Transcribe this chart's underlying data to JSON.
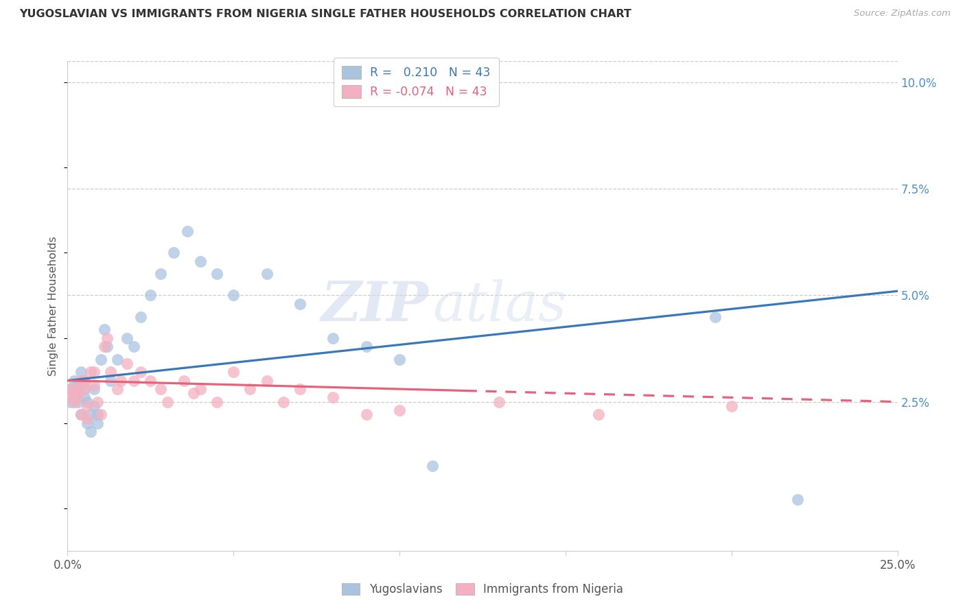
{
  "title": "YUGOSLAVIAN VS IMMIGRANTS FROM NIGERIA SINGLE FATHER HOUSEHOLDS CORRELATION CHART",
  "source": "Source: ZipAtlas.com",
  "ylabel": "Single Father Households",
  "yticks_labels": [
    "2.5%",
    "5.0%",
    "7.5%",
    "10.0%"
  ],
  "ytick_vals": [
    0.025,
    0.05,
    0.075,
    0.1
  ],
  "xmin": 0.0,
  "xmax": 0.25,
  "ymin": -0.01,
  "ymax": 0.105,
  "legend_blue_r_val": "0.210",
  "legend_blue_n": "N = 43",
  "legend_pink_r_val": "-0.074",
  "legend_pink_n": "N = 43",
  "blue_scatter_color": "#aac4e0",
  "pink_scatter_color": "#f4b0c0",
  "blue_line_color": "#3878b8",
  "pink_line_color": "#e8607a",
  "watermark_zip": "ZIP",
  "watermark_atlas": "atlas",
  "blue_x": [
    0.001,
    0.001,
    0.002,
    0.002,
    0.003,
    0.003,
    0.003,
    0.004,
    0.004,
    0.005,
    0.005,
    0.005,
    0.006,
    0.006,
    0.007,
    0.007,
    0.008,
    0.008,
    0.009,
    0.009,
    0.01,
    0.011,
    0.012,
    0.013,
    0.015,
    0.018,
    0.02,
    0.022,
    0.025,
    0.028,
    0.032,
    0.036,
    0.04,
    0.045,
    0.05,
    0.06,
    0.07,
    0.08,
    0.09,
    0.1,
    0.11,
    0.195,
    0.22
  ],
  "blue_y": [
    0.025,
    0.028,
    0.026,
    0.03,
    0.025,
    0.027,
    0.029,
    0.022,
    0.032,
    0.026,
    0.028,
    0.03,
    0.02,
    0.025,
    0.018,
    0.022,
    0.024,
    0.028,
    0.02,
    0.022,
    0.035,
    0.042,
    0.038,
    0.03,
    0.035,
    0.04,
    0.038,
    0.045,
    0.05,
    0.055,
    0.06,
    0.065,
    0.058,
    0.055,
    0.05,
    0.055,
    0.048,
    0.04,
    0.038,
    0.035,
    0.01,
    0.045,
    0.002
  ],
  "pink_x": [
    0.001,
    0.001,
    0.002,
    0.002,
    0.003,
    0.003,
    0.004,
    0.004,
    0.005,
    0.005,
    0.006,
    0.006,
    0.007,
    0.008,
    0.008,
    0.009,
    0.01,
    0.011,
    0.012,
    0.013,
    0.015,
    0.016,
    0.018,
    0.02,
    0.022,
    0.025,
    0.028,
    0.03,
    0.035,
    0.038,
    0.04,
    0.045,
    0.05,
    0.055,
    0.06,
    0.065,
    0.07,
    0.08,
    0.09,
    0.1,
    0.13,
    0.16,
    0.2
  ],
  "pink_y": [
    0.026,
    0.028,
    0.025,
    0.027,
    0.026,
    0.028,
    0.03,
    0.022,
    0.028,
    0.03,
    0.021,
    0.024,
    0.032,
    0.029,
    0.032,
    0.025,
    0.022,
    0.038,
    0.04,
    0.032,
    0.028,
    0.03,
    0.034,
    0.03,
    0.032,
    0.03,
    0.028,
    0.025,
    0.03,
    0.027,
    0.028,
    0.025,
    0.032,
    0.028,
    0.03,
    0.025,
    0.028,
    0.026,
    0.022,
    0.023,
    0.025,
    0.022,
    0.024
  ],
  "blue_line_x0": 0.0,
  "blue_line_y0": 0.03,
  "blue_line_x1": 0.25,
  "blue_line_y1": 0.051,
  "pink_line_x0": 0.0,
  "pink_line_y0": 0.03,
  "pink_line_x1": 0.25,
  "pink_line_y1": 0.025
}
